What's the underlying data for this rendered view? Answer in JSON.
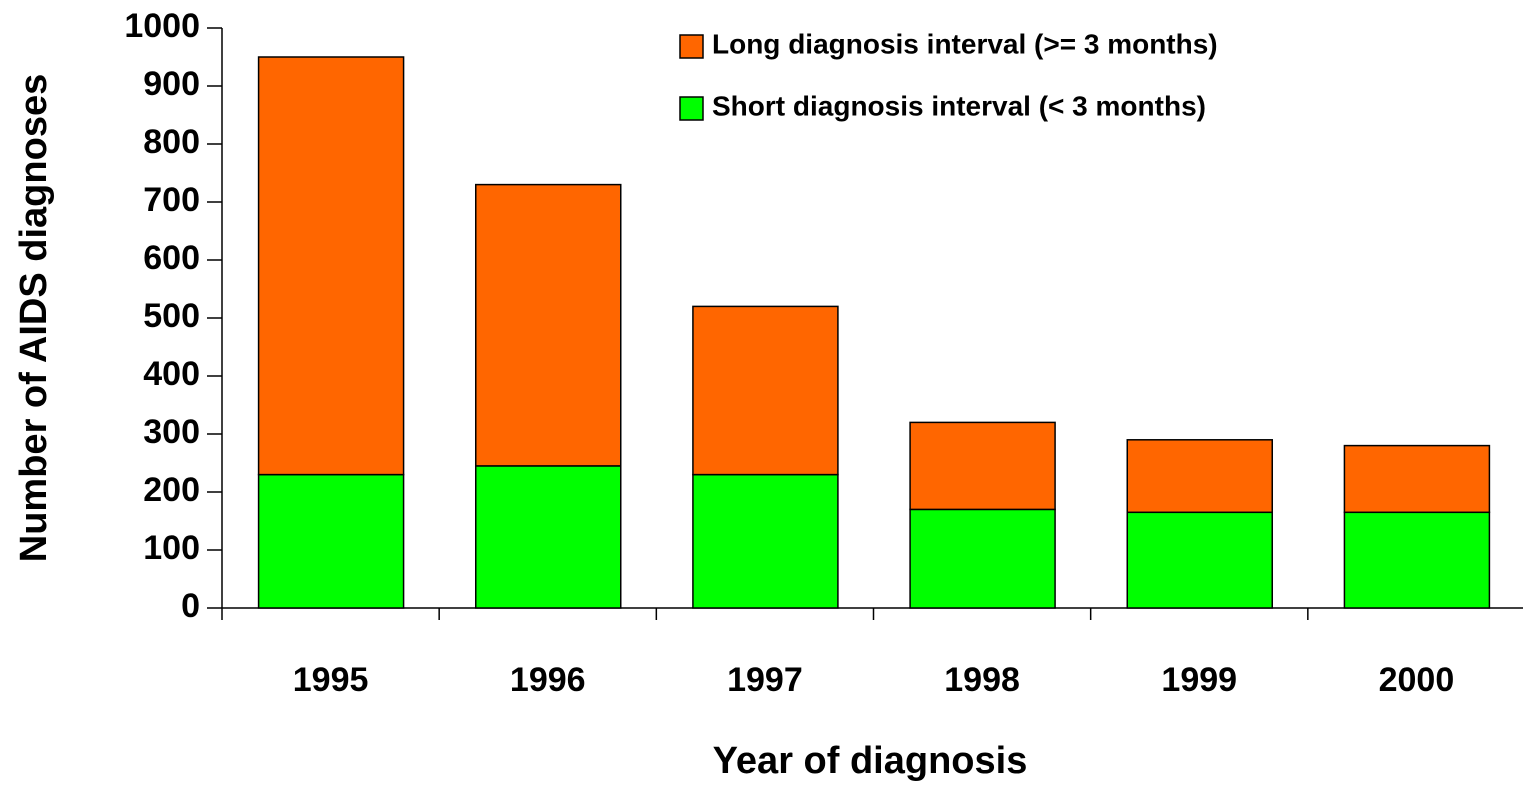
{
  "chart_data": {
    "type": "stacked_bar",
    "x_label": "Year of diagnosis",
    "y_label": "Number of AIDS diagnoses",
    "categories": [
      "1995",
      "1996",
      "1997",
      "1998",
      "1999",
      "2000"
    ],
    "series": [
      {
        "name": "Short diagnosis interval (< 3 months)",
        "color": "#00ff00",
        "values": [
          230,
          245,
          230,
          170,
          165,
          165
        ]
      },
      {
        "name": "Long diagnosis interval (>= 3 months)",
        "color": "#ff6600",
        "values": [
          720,
          485,
          290,
          150,
          125,
          115
        ]
      }
    ],
    "ylim": [
      0,
      1000
    ],
    "yticks": [
      0,
      100,
      200,
      300,
      400,
      500,
      600,
      700,
      800,
      900,
      1000
    ],
    "grid": false
  }
}
